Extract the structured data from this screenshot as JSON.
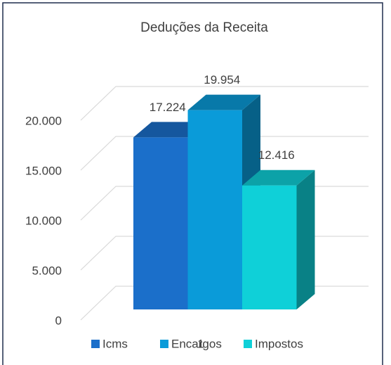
{
  "chart_data": {
    "type": "bar3d",
    "title": "Deduções da Receita",
    "categories": [
      "1"
    ],
    "series": [
      {
        "name": "Icms",
        "color": "#1b6fca",
        "values": [
          17224
        ],
        "value_labels": [
          "17.224"
        ]
      },
      {
        "name": "Encargos",
        "color": "#0a9bd9",
        "values": [
          19954
        ],
        "value_labels": [
          "19.954"
        ]
      },
      {
        "name": "Impostos",
        "color": "#0fd0d8",
        "values": [
          12416
        ],
        "value_labels": [
          "12.416"
        ]
      }
    ],
    "ylim": [
      0,
      20000
    ],
    "yticks": [
      0,
      {
        "value": 5000,
        "label": "5.000"
      },
      {
        "value": 10000,
        "label": "10.000"
      },
      {
        "value": 15000,
        "label": "15.000"
      },
      {
        "value": 20000,
        "label": "20.000"
      }
    ],
    "grid": true,
    "legend": "bottom"
  }
}
